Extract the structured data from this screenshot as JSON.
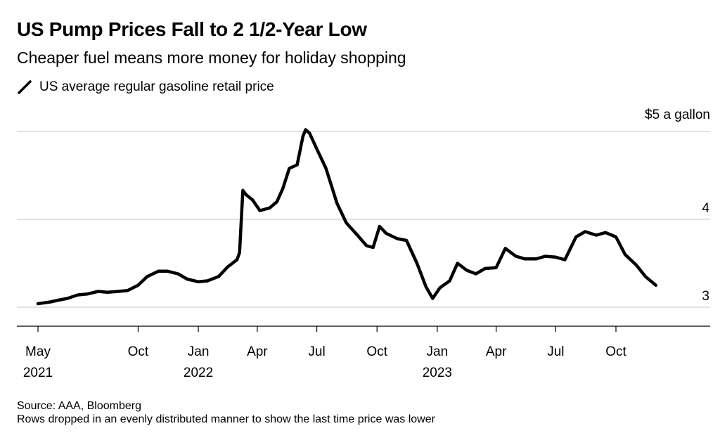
{
  "title": "US Pump Prices Fall to 2 1/2-Year Low",
  "subtitle": "Cheaper fuel means more money for holiday shopping",
  "legend_label": "US average regular gasoline retail price",
  "y_unit_label": "$5 a gallon",
  "source": "Source: AAA, Bloomberg",
  "note": "Rows dropped in an evenly distributed manner to show the last time price was lower",
  "colors": {
    "line": "#000000",
    "grid": "#d9d9d9",
    "axis": "#000000",
    "background": "#ffffff"
  },
  "chart_data": {
    "type": "line",
    "title": "US Pump Prices Fall to 2 1/2-Year Low",
    "subtitle": "Cheaper fuel means more money for holiday shopping",
    "xlabel": "",
    "ylabel": "",
    "ylim": [
      2.9,
      5.0
    ],
    "y_ticks": [
      {
        "value": 3,
        "label": "3"
      },
      {
        "value": 4,
        "label": "4"
      },
      {
        "value": 5,
        "label": ""
      }
    ],
    "x_ticks": [
      {
        "date": "2021-05-01",
        "label": "May",
        "year": "2021"
      },
      {
        "date": "2021-10-01",
        "label": "Oct",
        "year": ""
      },
      {
        "date": "2022-01-01",
        "label": "Jan",
        "year": "2022"
      },
      {
        "date": "2022-04-01",
        "label": "Apr",
        "year": ""
      },
      {
        "date": "2022-07-01",
        "label": "Jul",
        "year": ""
      },
      {
        "date": "2022-10-01",
        "label": "Oct",
        "year": ""
      },
      {
        "date": "2023-01-01",
        "label": "Jan",
        "year": "2023"
      },
      {
        "date": "2023-04-01",
        "label": "Apr",
        "year": ""
      },
      {
        "date": "2023-07-01",
        "label": "Jul",
        "year": ""
      },
      {
        "date": "2023-10-01",
        "label": "Oct",
        "year": ""
      }
    ],
    "xlim": [
      "2021-04-10",
      "2024-01-28"
    ],
    "grid": true,
    "series": [
      {
        "name": "US average regular gasoline retail price",
        "x": [
          "2021-05-01",
          "2021-05-10",
          "2021-05-20",
          "2021-06-01",
          "2021-06-15",
          "2021-07-01",
          "2021-07-15",
          "2021-08-01",
          "2021-08-15",
          "2021-09-01",
          "2021-09-15",
          "2021-10-01",
          "2021-10-15",
          "2021-11-01",
          "2021-11-15",
          "2021-12-01",
          "2021-12-15",
          "2022-01-01",
          "2022-01-15",
          "2022-02-01",
          "2022-02-15",
          "2022-03-01",
          "2022-03-05",
          "2022-03-10",
          "2022-03-15",
          "2022-03-25",
          "2022-04-05",
          "2022-04-20",
          "2022-05-01",
          "2022-05-10",
          "2022-05-20",
          "2022-06-01",
          "2022-06-10",
          "2022-06-14",
          "2022-06-20",
          "2022-07-01",
          "2022-07-15",
          "2022-08-01",
          "2022-08-15",
          "2022-09-01",
          "2022-09-15",
          "2022-09-25",
          "2022-10-05",
          "2022-10-15",
          "2022-11-01",
          "2022-11-15",
          "2022-12-01",
          "2022-12-15",
          "2022-12-25",
          "2023-01-05",
          "2023-01-20",
          "2023-02-01",
          "2023-02-15",
          "2023-03-01",
          "2023-03-15",
          "2023-04-01",
          "2023-04-15",
          "2023-05-01",
          "2023-05-15",
          "2023-06-01",
          "2023-06-15",
          "2023-07-01",
          "2023-07-15",
          "2023-08-01",
          "2023-08-15",
          "2023-09-01",
          "2023-09-15",
          "2023-10-01",
          "2023-10-15",
          "2023-11-01",
          "2023-11-15",
          "2023-12-01"
        ],
        "y": [
          3.04,
          3.05,
          3.06,
          3.08,
          3.1,
          3.14,
          3.15,
          3.18,
          3.17,
          3.18,
          3.19,
          3.25,
          3.35,
          3.41,
          3.41,
          3.38,
          3.32,
          3.29,
          3.3,
          3.35,
          3.46,
          3.54,
          3.62,
          4.33,
          4.28,
          4.22,
          4.1,
          4.13,
          4.2,
          4.35,
          4.58,
          4.62,
          4.95,
          5.02,
          4.98,
          4.8,
          4.58,
          4.18,
          3.96,
          3.82,
          3.7,
          3.68,
          3.92,
          3.84,
          3.78,
          3.76,
          3.5,
          3.23,
          3.1,
          3.22,
          3.3,
          3.5,
          3.42,
          3.38,
          3.44,
          3.45,
          3.67,
          3.58,
          3.55,
          3.55,
          3.58,
          3.57,
          3.54,
          3.8,
          3.86,
          3.82,
          3.85,
          3.8,
          3.6,
          3.48,
          3.35,
          3.25
        ]
      }
    ]
  }
}
